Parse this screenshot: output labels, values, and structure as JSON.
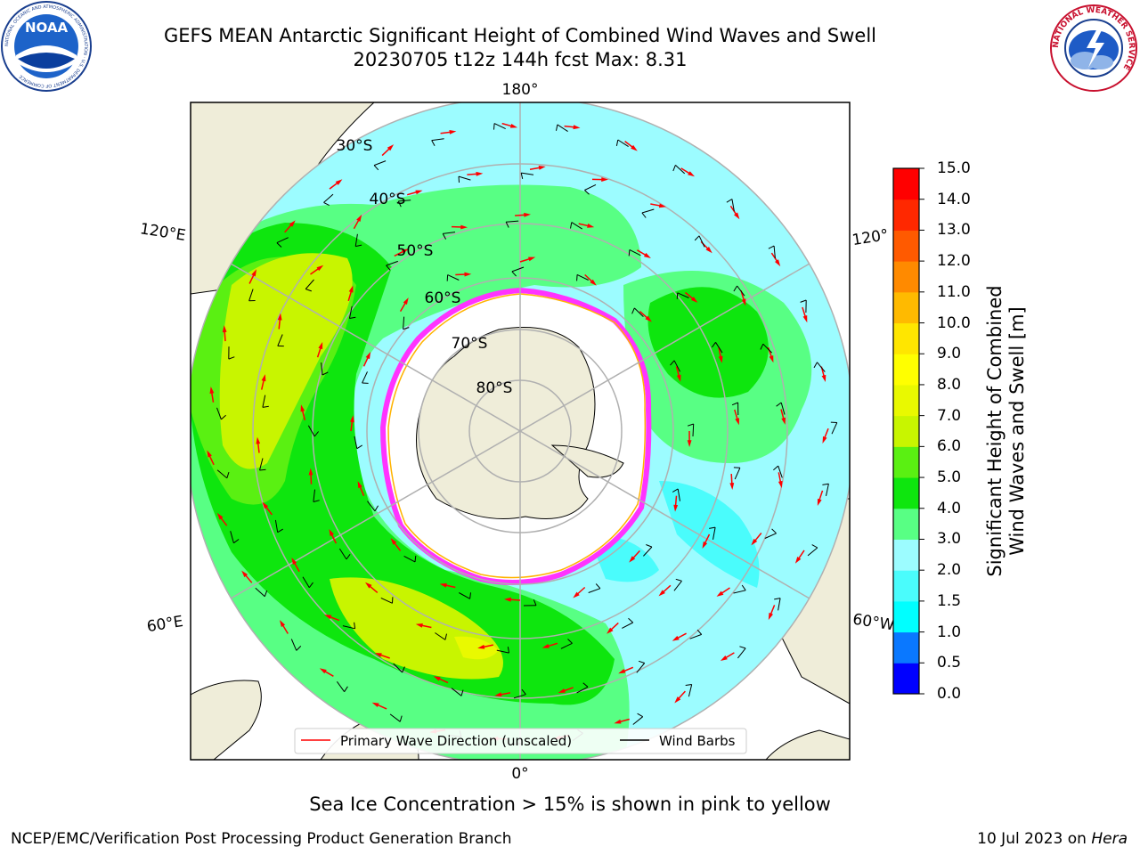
{
  "title": {
    "line1": "GEFS MEAN Antarctic Significant Height of Combined Wind Waves and Swell",
    "line2": "20230705 t12z 144h fcst   Max: 8.31"
  },
  "logos": {
    "left": {
      "text": "NOAA",
      "ring_text": "NATIONAL OCEANIC AND ATMOSPHERIC ADMINISTRATION · U.S. DEPARTMENT OF COMMERCE"
    },
    "right": {
      "ring_text": "NATIONAL WEATHER SERVICE"
    }
  },
  "map": {
    "projection": "south-polar-stereographic",
    "longitude_labels": {
      "top": "180°",
      "bottom": "0°",
      "upper_left": "120°E",
      "upper_right": "120°",
      "lower_left": "60°E",
      "lower_right": "60°W"
    },
    "latitude_labels": [
      "30°S",
      "40°S",
      "50°S",
      "60°S",
      "70°S",
      "80°S"
    ],
    "legend": {
      "wave_direction": "Primary Wave Direction (unscaled)",
      "wind_barbs": "Wind Barbs"
    },
    "colors": {
      "land": "#efedd9",
      "sea_ice": "#ffffff",
      "ice_edge": "#ff33ff",
      "arrow": "#ff0000",
      "barb": "#000000",
      "grid": "#b0b0b0"
    }
  },
  "colorbar": {
    "label_line1": "Significant Height of Combined",
    "label_line2": "Wind Waves and Swell [m]",
    "ticks": [
      "0.0",
      "0.5",
      "1.0",
      "1.5",
      "2.0",
      "3.0",
      "4.0",
      "5.0",
      "6.0",
      "7.0",
      "8.0",
      "9.0",
      "10.0",
      "11.0",
      "12.0",
      "13.0",
      "14.0",
      "15.0"
    ],
    "colors": [
      "#0000ff",
      "#0a78ff",
      "#00ffff",
      "#4afcfc",
      "#9cfcff",
      "#58ff84",
      "#0ee60e",
      "#5af012",
      "#c8f500",
      "#e9f900",
      "#ffff00",
      "#ffe600",
      "#ffba00",
      "#ff8a00",
      "#ff5a00",
      "#ff2800",
      "#ff0000"
    ]
  },
  "subcaption": "Sea Ice Concentration > 15% is shown in pink to yellow",
  "footer": {
    "left": "NCEP/EMC/Verification Post Processing Product Generation Branch",
    "right_prefix": "10 Jul 2023 on",
    "right_host": "Hera"
  }
}
